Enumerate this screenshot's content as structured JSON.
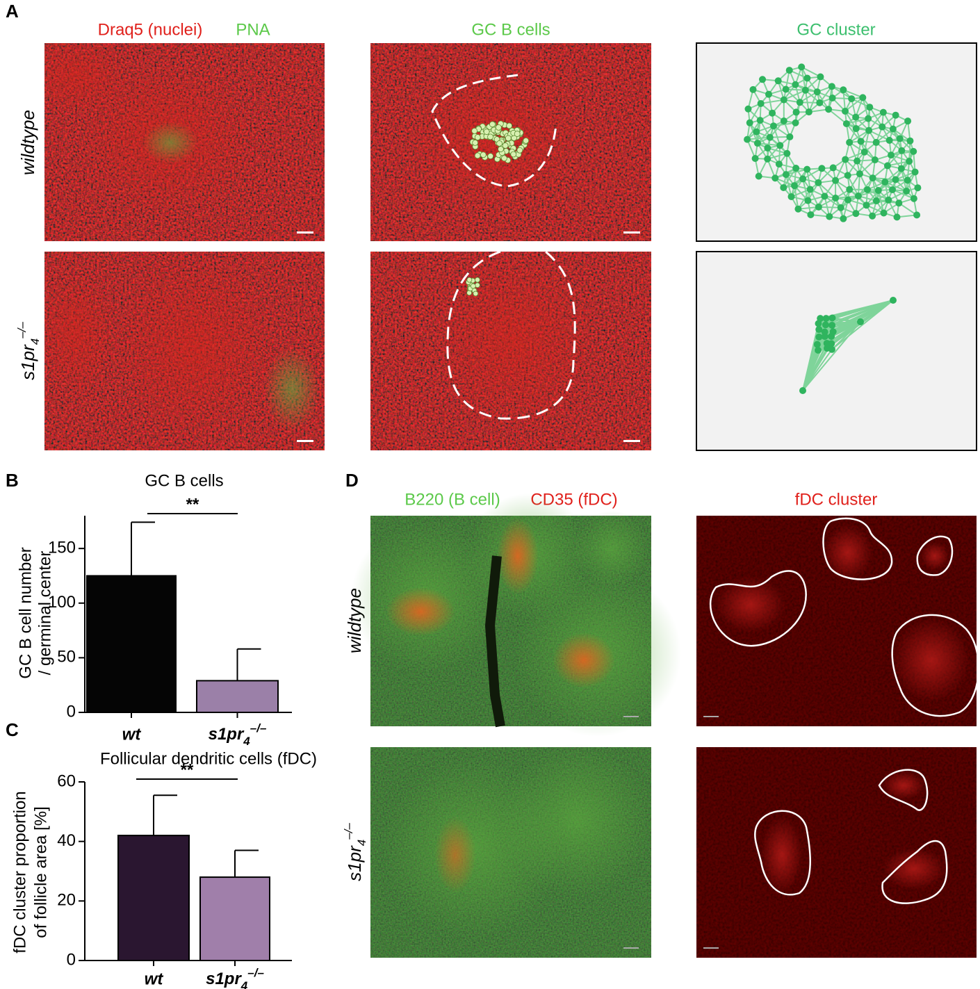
{
  "panel_a": {
    "label": "A",
    "titles": [
      "Draq5 (nuclei)",
      "PNA",
      "GC B cells",
      "GC cluster"
    ],
    "rows": [
      "wildtype",
      {
        "base": "s1pr",
        "sub": "4",
        "sup": "–/–"
      }
    ]
  },
  "panel_d": {
    "label": "D",
    "titles": [
      "B220 (B cell)",
      "CD35 (fDC)",
      "fDC cluster"
    ],
    "rows": [
      "wildtype",
      {
        "base": "s1pr",
        "sub": "4",
        "sup": "–/–"
      }
    ]
  },
  "chart_data": [
    {
      "type": "bar",
      "label": "B",
      "title": "GC B cells",
      "y_label": [
        "GC B cell number",
        "/ germinal center"
      ],
      "categories": [
        "wt",
        {
          "base": "s1pr",
          "sub": "4",
          "sup": "–/–"
        }
      ],
      "values": [
        125,
        29
      ],
      "errors": [
        49,
        29
      ],
      "colors": [
        "#050505",
        "#9b80a8"
      ],
      "ylim": [
        0,
        180
      ],
      "yticks": [
        0,
        50,
        100,
        150
      ],
      "significance": "**"
    },
    {
      "type": "bar",
      "label": "C",
      "title": "Follicular dendritic cells (fDC)",
      "y_label": [
        "fDC cluster proportion",
        "of follicle area [%]"
      ],
      "categories": [
        "wt",
        {
          "base": "s1pr",
          "sub": "4",
          "sup": "–/–"
        }
      ],
      "values": [
        42,
        28
      ],
      "errors": [
        13.5,
        9
      ],
      "colors": [
        "#2a1630",
        "#a07faa"
      ],
      "ylim": [
        0,
        60
      ],
      "yticks": [
        0,
        20,
        40,
        60
      ],
      "significance": "**"
    }
  ]
}
